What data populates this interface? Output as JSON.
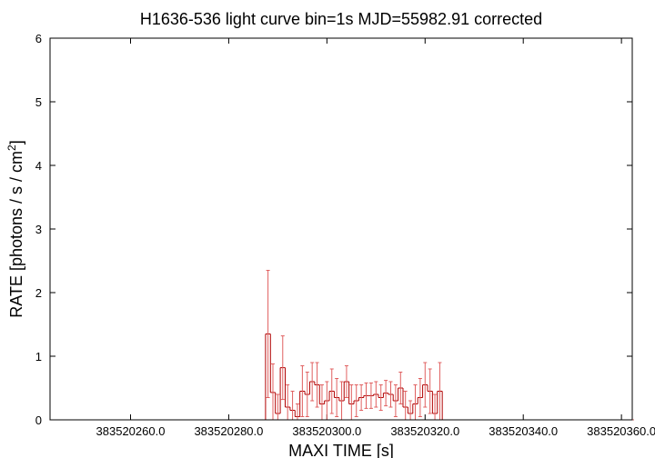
{
  "chart_data": {
    "type": "step-errorbar",
    "title": "H1636-536 light curve bin=1s MJD=55982.91 corrected",
    "xlabel": "MAXI TIME [s]",
    "ylabel": {
      "text": "RATE [photons / s / cm",
      "sup": "2",
      "end": "]"
    },
    "xlim": [
      383520243.6,
      383520362.2
    ],
    "ylim": [
      0,
      6
    ],
    "xticks": [
      {
        "value": 383520260,
        "label": "383520260.0"
      },
      {
        "value": 383520280,
        "label": "383520280.0"
      },
      {
        "value": 383520300,
        "label": "383520300.0"
      },
      {
        "value": 383520320,
        "label": "383520320.0"
      },
      {
        "value": 383520340,
        "label": "383520340.0"
      },
      {
        "value": 383520360,
        "label": "383520360.0"
      }
    ],
    "yticks": [
      0,
      1,
      2,
      3,
      4,
      5,
      6
    ],
    "color": "#b00000",
    "error_color": "#e06060",
    "x": [
      383520244,
      383520245,
      383520246,
      383520247,
      383520248,
      383520249,
      383520250,
      383520251,
      383520252,
      383520253,
      383520254,
      383520255,
      383520256,
      383520257,
      383520258,
      383520259,
      383520260,
      383520261,
      383520262,
      383520263,
      383520264,
      383520265,
      383520266,
      383520267,
      383520268,
      383520269,
      383520270,
      383520271,
      383520272,
      383520273,
      383520274,
      383520275,
      383520276,
      383520277,
      383520278,
      383520279,
      383520280,
      383520281,
      383520282,
      383520283,
      383520284,
      383520285,
      383520286,
      383520287,
      383520288,
      383520289,
      383520290,
      383520291,
      383520292,
      383520293,
      383520294,
      383520295,
      383520296,
      383520297,
      383520298,
      383520299,
      383520300,
      383520301,
      383520302,
      383520303,
      383520304,
      383520305,
      383520306,
      383520307,
      383520308,
      383520309,
      383520310,
      383520311,
      383520312,
      383520313,
      383520314,
      383520315,
      383520316,
      383520317,
      383520318,
      383520319,
      383520320,
      383520321,
      383520322,
      383520323,
      383520324,
      383520325,
      383520326,
      383520327,
      383520328,
      383520329,
      383520330,
      383520331,
      383520332,
      383520333,
      383520334,
      383520335,
      383520336,
      383520337,
      383520338,
      383520339,
      383520340,
      383520341,
      383520342,
      383520343,
      383520344,
      383520345,
      383520346,
      383520347,
      383520348,
      383520349,
      383520350,
      383520351,
      383520352,
      383520353,
      383520354,
      383520355,
      383520356,
      383520357,
      383520358,
      383520359,
      383520360,
      383520361,
      383520362
    ],
    "values": [
      0,
      0,
      0,
      0,
      0,
      0,
      0,
      0,
      0,
      0,
      0,
      0,
      0,
      0,
      0,
      0,
      0,
      0,
      0,
      0,
      0,
      0,
      0,
      0,
      0,
      0,
      0,
      0,
      0,
      0,
      0,
      0,
      0,
      0,
      0,
      0,
      0,
      0,
      0,
      0,
      0,
      0,
      0,
      0,
      1.35,
      0.43,
      0.1,
      0.82,
      0.2,
      0.15,
      0.05,
      0.45,
      0.4,
      0.6,
      0.55,
      0.25,
      0.3,
      0.45,
      0.35,
      0.3,
      0.6,
      0.25,
      0.3,
      0.35,
      0.38,
      0.38,
      0.4,
      0.35,
      0.42,
      0.4,
      0.3,
      0.5,
      0.2,
      0.1,
      0.25,
      0.35,
      0.55,
      0.45,
      0.1,
      0.45,
      0,
      0,
      0,
      0,
      0,
      0,
      0,
      0,
      0,
      0,
      0,
      0,
      0,
      0,
      0,
      0,
      0,
      0,
      0,
      0,
      0,
      0,
      0,
      0,
      0,
      0,
      0,
      0,
      0,
      0,
      0,
      0,
      0,
      0,
      0,
      0,
      0,
      0,
      0
    ],
    "errors": [
      0,
      0,
      0,
      0,
      0,
      0,
      0,
      0,
      0,
      0,
      0,
      0,
      0,
      0,
      0,
      0,
      0,
      0,
      0,
      0,
      0,
      0,
      0,
      0,
      0,
      0,
      0,
      0,
      0,
      0,
      0,
      0,
      0,
      0,
      0,
      0,
      0,
      0,
      0,
      0,
      0,
      0,
      0,
      0,
      1.0,
      0.45,
      0.3,
      0.5,
      0.35,
      0.3,
      0.2,
      0.4,
      0.35,
      0.3,
      0.35,
      0.3,
      0.3,
      0.35,
      0.3,
      0.3,
      0.25,
      0.3,
      0.25,
      0.2,
      0.2,
      0.2,
      0.2,
      0.2,
      0.2,
      0.2,
      0.25,
      0.25,
      0.25,
      0.2,
      0.3,
      0.3,
      0.35,
      0.35,
      0.3,
      0.45,
      0,
      0,
      0,
      0,
      0,
      0,
      0,
      0,
      0,
      0,
      0,
      0,
      0,
      0,
      0,
      0,
      0,
      0,
      0,
      0,
      0,
      0,
      0,
      0,
      0,
      0,
      0,
      0,
      0,
      0,
      0,
      0,
      0,
      0,
      0,
      0,
      0,
      0,
      0
    ]
  }
}
